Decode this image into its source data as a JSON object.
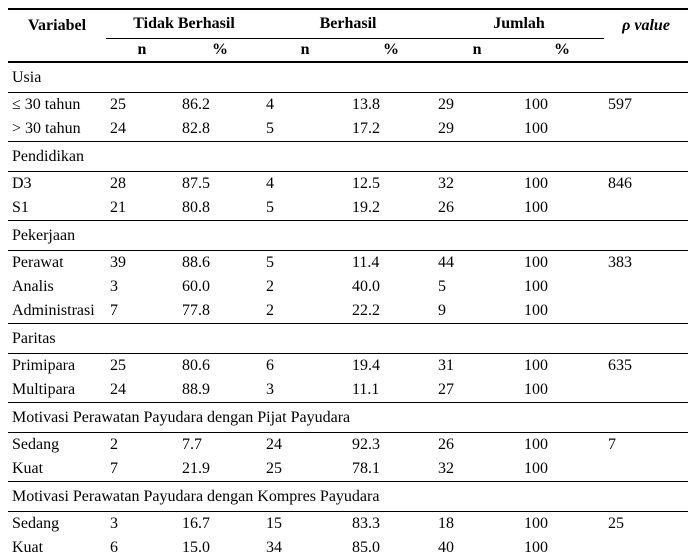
{
  "page": {
    "background": "#ffffff",
    "text_color": "#000000",
    "rule_color": "#000000"
  },
  "table": {
    "header": {
      "variabel": "Variabel",
      "groups": [
        "Tidak Berhasil",
        "Berhasil",
        "Jumlah"
      ],
      "sub": [
        "n",
        "%",
        "n",
        "%",
        "n",
        "%"
      ],
      "p_value": "ρ value"
    },
    "sections": [
      {
        "title": "Usia",
        "rows": [
          {
            "cells": [
              "≤ 30 tahun",
              "25",
              "86.2",
              "4",
              "13.8",
              "29",
              "100",
              "597"
            ]
          },
          {
            "cells": [
              "> 30 tahun",
              "24",
              "82.8",
              "5",
              "17.2",
              "29",
              "100",
              ""
            ]
          }
        ]
      },
      {
        "title": "Pendidikan",
        "rows": [
          {
            "cells": [
              "D3",
              "28",
              "87.5",
              "4",
              "12.5",
              "32",
              "100",
              "846"
            ]
          },
          {
            "cells": [
              "S1",
              "21",
              "80.8",
              "5",
              "19.2",
              "26",
              "100",
              ""
            ]
          }
        ]
      },
      {
        "title": "Pekerjaan",
        "rows": [
          {
            "cells": [
              "Perawat",
              "39",
              "88.6",
              "5",
              "11.4",
              "44",
              "100",
              "383"
            ]
          },
          {
            "cells": [
              "Analis",
              "3",
              "60.0",
              "2",
              "40.0",
              "5",
              "100",
              ""
            ]
          },
          {
            "cells": [
              "Administrasi",
              "7",
              "77.8",
              "2",
              "22.2",
              "9",
              "100",
              ""
            ]
          }
        ]
      },
      {
        "title": "Paritas",
        "rows": [
          {
            "cells": [
              "Primipara",
              "25",
              "80.6",
              "6",
              "19.4",
              "31",
              "100",
              "635"
            ]
          },
          {
            "cells": [
              "Multipara",
              "24",
              "88.9",
              "3",
              "11.1",
              "27",
              "100",
              ""
            ]
          }
        ]
      },
      {
        "title": "Motivasi Perawatan Payudara dengan Pijat Payudara",
        "rows": [
          {
            "cells": [
              "Sedang",
              "2",
              "7.7",
              "24",
              "92.3",
              "26",
              "100",
              "7"
            ]
          },
          {
            "cells": [
              "Kuat",
              "7",
              "21.9",
              "25",
              "78.1",
              "32",
              "100",
              ""
            ]
          }
        ]
      },
      {
        "title": "Motivasi Perawatan Payudara dengan Kompres Payudara",
        "rows": [
          {
            "cells": [
              "Sedang",
              "3",
              "16.7",
              "15",
              "83.3",
              "18",
              "100",
              "25"
            ]
          },
          {
            "cells": [
              "Kuat",
              "6",
              "15.0",
              "34",
              "85.0",
              "40",
              "100",
              ""
            ]
          }
        ]
      }
    ]
  }
}
